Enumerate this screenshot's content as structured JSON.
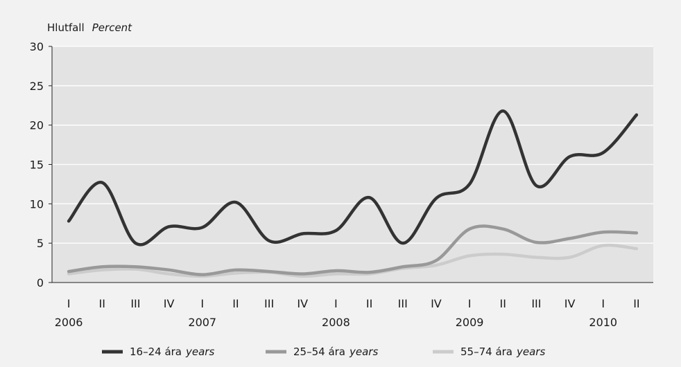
{
  "chart_data": {
    "type": "line",
    "ylabel": "Hlutfall",
    "ylabel_en": "Percent",
    "ylim": [
      0,
      30
    ],
    "yticks": [
      "0",
      "5",
      "10",
      "15",
      "20",
      "25",
      "30"
    ],
    "ytick_values": [
      0,
      5,
      10,
      15,
      20,
      25,
      30
    ],
    "categories": [
      "I",
      "II",
      "III",
      "IV",
      "I",
      "II",
      "III",
      "IV",
      "I",
      "II",
      "III",
      "IV",
      "I",
      "II",
      "III",
      "IV",
      "I",
      "II"
    ],
    "years": [
      {
        "label": "2006",
        "start_index": 0
      },
      {
        "label": "2007",
        "start_index": 4
      },
      {
        "label": "2008",
        "start_index": 8
      },
      {
        "label": "2009",
        "start_index": 12
      },
      {
        "label": "2010",
        "start_index": 16
      }
    ],
    "grid": true,
    "legend_position": "bottom",
    "series": [
      {
        "name": "16–24 ára",
        "name_en": "years",
        "color": "#333333",
        "values": [
          7.8,
          12.7,
          5.0,
          7.1,
          7.0,
          10.2,
          5.3,
          6.2,
          6.6,
          10.8,
          5.0,
          10.7,
          12.5,
          21.8,
          12.3,
          16.0,
          16.5,
          21.3
        ]
      },
      {
        "name": "25–54 ára",
        "name_en": "years",
        "color": "#999999",
        "values": [
          1.4,
          2.0,
          2.0,
          1.6,
          1.0,
          1.6,
          1.4,
          1.1,
          1.5,
          1.3,
          2.0,
          2.8,
          6.8,
          6.8,
          5.1,
          5.6,
          6.4,
          6.3
        ]
      },
      {
        "name": "55–74 ára",
        "name_en": "years",
        "color": "#cccccc",
        "values": [
          1.1,
          1.6,
          1.7,
          1.1,
          0.8,
          1.2,
          1.3,
          0.8,
          1.1,
          1.1,
          1.8,
          2.2,
          3.4,
          3.6,
          3.2,
          3.2,
          4.7,
          4.3
        ]
      }
    ]
  }
}
